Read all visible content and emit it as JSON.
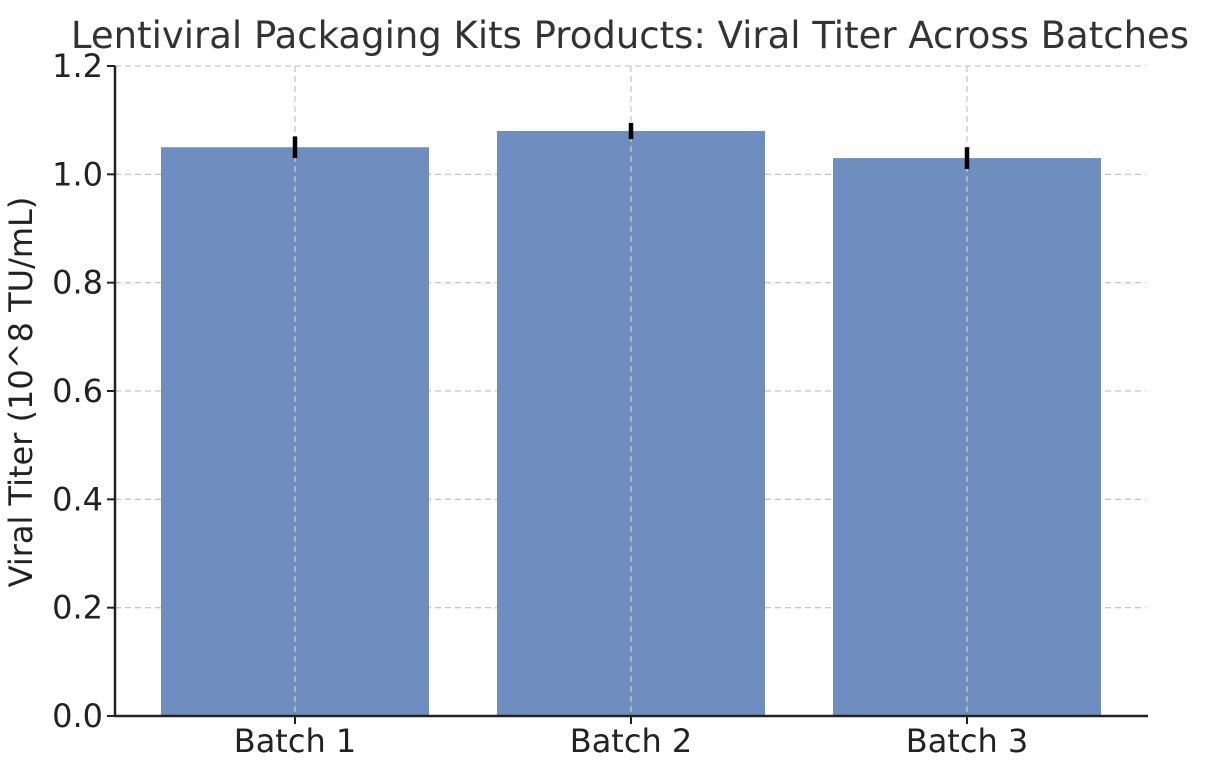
{
  "chart_data": {
    "type": "bar",
    "title": "Lentiviral Packaging Kits Products: Viral Titer Across Batches",
    "xlabel": "",
    "ylabel": "Viral Titer (10^8 TU/mL)",
    "categories": [
      "Batch 1",
      "Batch 2",
      "Batch 3"
    ],
    "values": [
      1.05,
      1.08,
      1.03
    ],
    "errors": [
      0.02,
      0.015,
      0.02
    ],
    "ylim": [
      0,
      1.2
    ],
    "yticks": [
      "0.0",
      "0.2",
      "0.4",
      "0.6",
      "0.8",
      "1.0",
      "1.2"
    ],
    "grid": true,
    "bar_color": "#6f8ebf",
    "error_color": "#000000"
  }
}
